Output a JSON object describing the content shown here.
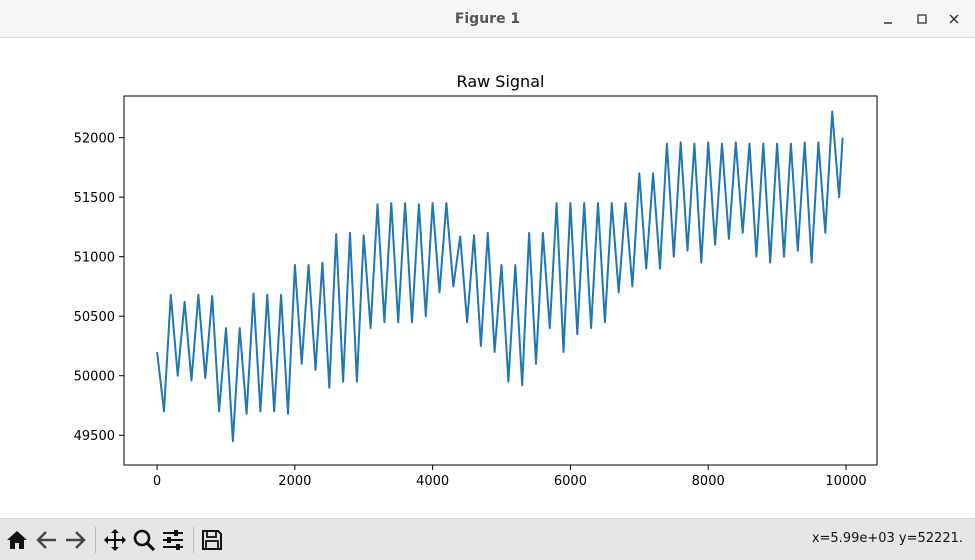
{
  "window": {
    "title": "Figure 1",
    "controls": [
      "minimize",
      "maximize",
      "close"
    ]
  },
  "toolbar": {
    "buttons": [
      {
        "name": "home",
        "icon": "home-icon"
      },
      {
        "name": "back",
        "icon": "back-arrow-icon"
      },
      {
        "name": "forward",
        "icon": "forward-arrow-icon"
      },
      {
        "name": "pan",
        "icon": "pan-move-icon"
      },
      {
        "name": "zoom",
        "icon": "zoom-magnifier-icon"
      },
      {
        "name": "configure-subplots",
        "icon": "sliders-icon"
      },
      {
        "name": "save",
        "icon": "save-floppy-icon"
      }
    ],
    "coords": "x=5.99e+03 y=52221."
  },
  "chart_data": {
    "type": "line",
    "title": "Raw Signal",
    "xlabel": "",
    "ylabel": "",
    "xlim": [
      -480,
      10450
    ],
    "ylim": [
      49250,
      52350
    ],
    "xticks": [
      0,
      2000,
      4000,
      6000,
      8000,
      10000
    ],
    "yticks": [
      49500,
      50000,
      50500,
      51000,
      51500,
      52000
    ],
    "grid": false,
    "color": "#1f77b4",
    "series": [
      {
        "name": "",
        "x": [
          0,
          100,
          200,
          300,
          400,
          500,
          600,
          700,
          800,
          900,
          1000,
          1100,
          1200,
          1300,
          1400,
          1500,
          1600,
          1700,
          1800,
          1900,
          2000,
          2100,
          2200,
          2300,
          2400,
          2500,
          2600,
          2700,
          2800,
          2900,
          3000,
          3100,
          3200,
          3300,
          3400,
          3500,
          3600,
          3700,
          3800,
          3900,
          4000,
          4100,
          4200,
          4300,
          4400,
          4500,
          4600,
          4700,
          4800,
          4900,
          5000,
          5100,
          5200,
          5300,
          5400,
          5500,
          5600,
          5700,
          5800,
          5900,
          6000,
          6100,
          6200,
          6300,
          6400,
          6500,
          6600,
          6700,
          6800,
          6900,
          7000,
          7100,
          7200,
          7300,
          7400,
          7500,
          7600,
          7700,
          7800,
          7900,
          8000,
          8100,
          8200,
          8300,
          8400,
          8500,
          8600,
          8700,
          8800,
          8900,
          9000,
          9100,
          9200,
          9300,
          9400,
          9500,
          9600,
          9700,
          9800,
          9900,
          9950
        ],
        "y": [
          50200,
          49700,
          50680,
          50000,
          50620,
          49960,
          50680,
          49980,
          50670,
          49700,
          50400,
          49450,
          50400,
          49680,
          50690,
          49700,
          50680,
          49700,
          50680,
          49680,
          50930,
          50100,
          50930,
          50050,
          50950,
          49900,
          51190,
          49950,
          51200,
          49950,
          51180,
          50400,
          51440,
          50450,
          51450,
          50450,
          51450,
          50450,
          51440,
          50500,
          51450,
          50700,
          51450,
          50750,
          51170,
          50450,
          51180,
          50250,
          51200,
          50200,
          50930,
          49950,
          50930,
          49920,
          51200,
          50100,
          51200,
          50400,
          51450,
          50200,
          51450,
          50350,
          51450,
          50400,
          51450,
          50450,
          51450,
          50700,
          51450,
          50750,
          51700,
          50900,
          51700,
          50900,
          51950,
          51000,
          51960,
          51050,
          51950,
          50950,
          51960,
          51100,
          51950,
          51150,
          51960,
          51200,
          51950,
          51000,
          51950,
          50950,
          51950,
          51000,
          51950,
          51050,
          51960,
          50950,
          51960,
          51200,
          52220,
          51500,
          52000
        ]
      }
    ]
  }
}
